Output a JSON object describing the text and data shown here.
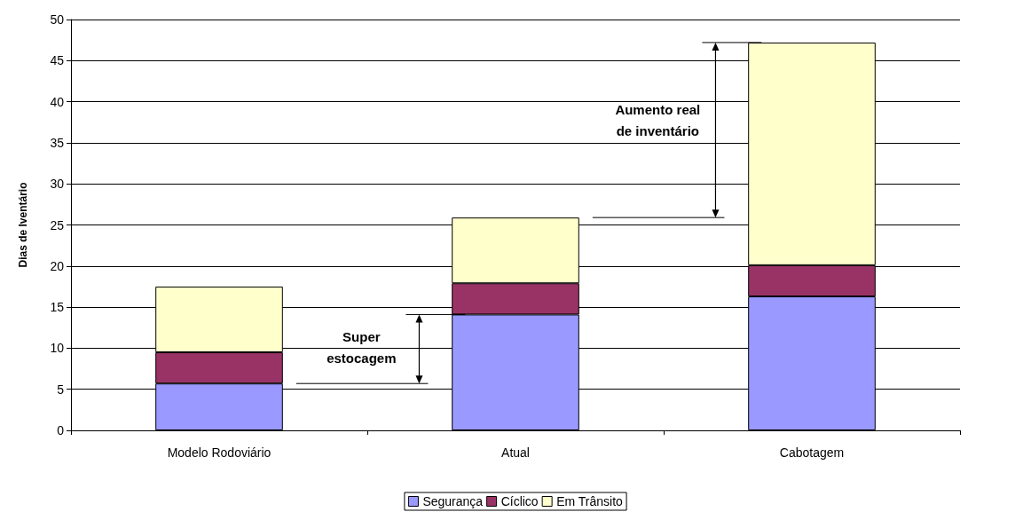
{
  "chart_data": {
    "type": "bar",
    "stacked": true,
    "ylabel": "Dias de Iventário",
    "categories": [
      "Modelo Rodoviário",
      "Atual",
      "Cabotagem"
    ],
    "series": [
      {
        "name": "Segurança",
        "color": "#9999ff",
        "values": [
          5.7,
          14.1,
          16.3
        ]
      },
      {
        "name": "Cíclico",
        "color": "#993366",
        "values": [
          3.8,
          3.8,
          3.8
        ]
      },
      {
        "name": "Em Trânsito",
        "color": "#ffffcc",
        "values": [
          8.0,
          8.0,
          27.1
        ]
      }
    ],
    "ylim": [
      0,
      50
    ],
    "yticks": [
      0,
      5,
      10,
      15,
      20,
      25,
      30,
      35,
      40,
      45,
      50
    ],
    "grid": "y",
    "legend": "bottom",
    "annotations": [
      "Super estocagem",
      "Aumento real de inventário"
    ]
  }
}
